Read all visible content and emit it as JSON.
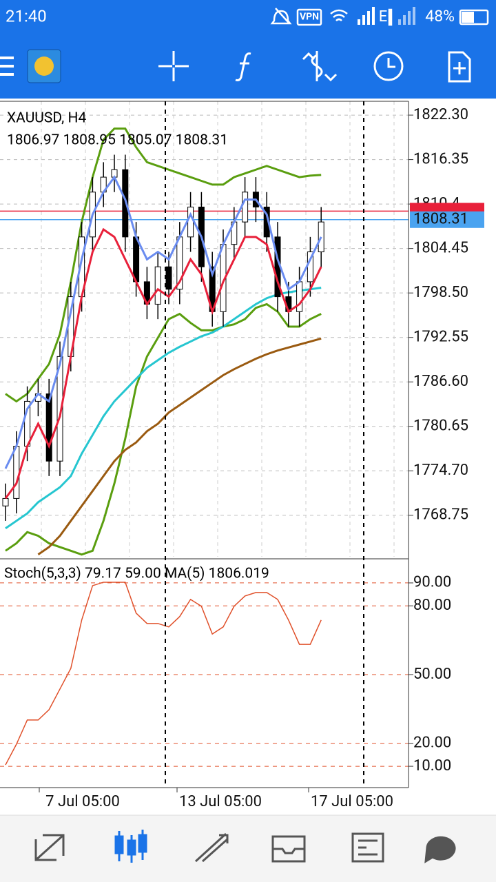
{
  "status_bar": {
    "time": "21:40",
    "vpn": "VPN",
    "network": "E",
    "battery": "48%"
  },
  "chart_data": [
    {
      "type": "candlestick",
      "title": "XAUUSD, H4",
      "subtitle": "1806.97 1808.95 1805.07 1808.31",
      "open": [
        1770,
        1771,
        1778,
        1784,
        1785,
        1776,
        1790,
        1798,
        1806,
        1812,
        1814,
        1815,
        1806,
        1800,
        1797,
        1802,
        1799,
        1806,
        1810,
        1802,
        1796,
        1805,
        1808,
        1812,
        1810,
        1806,
        1798,
        1796,
        1800,
        1804
      ],
      "high": [
        1773,
        1780,
        1786,
        1787,
        1787,
        1792,
        1800,
        1808,
        1814,
        1816,
        1817,
        1817,
        1808,
        1802,
        1804,
        1804,
        1808,
        1812,
        1812,
        1804,
        1807,
        1810,
        1814,
        1814,
        1812,
        1808,
        1800,
        1802,
        1806,
        1810
      ],
      "low": [
        1768,
        1769,
        1776,
        1782,
        1774,
        1774,
        1788,
        1796,
        1804,
        1810,
        1812,
        1804,
        1798,
        1795,
        1795,
        1797,
        1797,
        1804,
        1800,
        1794,
        1794,
        1803,
        1806,
        1808,
        1804,
        1796,
        1794,
        1794,
        1798,
        1802
      ],
      "close": [
        1771,
        1778,
        1784,
        1785,
        1776,
        1790,
        1798,
        1806,
        1812,
        1814,
        1815,
        1806,
        1800,
        1797,
        1802,
        1799,
        1806,
        1810,
        1802,
        1796,
        1805,
        1808,
        1812,
        1810,
        1806,
        1798,
        1796,
        1800,
        1804,
        1808
      ],
      "series": [
        {
          "color": "#5a9e0f",
          "values": [
            1785,
            1784,
            1785,
            1787,
            1789,
            1793,
            1800,
            1808,
            1814,
            1819,
            1820.5,
            1820.5,
            1818,
            1816,
            1815.5,
            1815,
            1814.5,
            1814,
            1813.5,
            1813,
            1813,
            1814,
            1814.5,
            1815,
            1815.5,
            1815,
            1814.5,
            1814,
            1814.2,
            1814.3
          ]
        },
        {
          "color": "#5a9e0f",
          "values": [
            1764,
            1765,
            1766.5,
            1766,
            1765,
            1764.5,
            1764,
            1763.5,
            1764,
            1768,
            1773,
            1779,
            1786,
            1790,
            1792.5,
            1795,
            1795.7,
            1794.5,
            1793.5,
            1793.5,
            1794,
            1794.3,
            1795,
            1796.5,
            1797,
            1796,
            1794,
            1794,
            1795,
            1795.7
          ]
        },
        {
          "color": "#26c6d0",
          "values": [
            1767,
            1768,
            1769,
            1770.5,
            1771.5,
            1772.5,
            1774,
            1777,
            1779.5,
            1782,
            1784,
            1785.5,
            1787,
            1788.5,
            1789.5,
            1790.5,
            1791.3,
            1792,
            1792.7,
            1793.2,
            1794,
            1795,
            1796,
            1797,
            1797.8,
            1798.3,
            1798.6,
            1798.8,
            1799,
            1799.2
          ]
        },
        {
          "color": "#9a5a10",
          "values": [
            null,
            null,
            null,
            1763.5,
            1764.5,
            1766,
            1768,
            1770,
            1772,
            1774,
            1776,
            1777.5,
            1778.5,
            1780,
            1781,
            1782.5,
            1783.5,
            1784.5,
            1785.5,
            1786.5,
            1787.5,
            1788.3,
            1789,
            1789.7,
            1790.3,
            1790.8,
            1791.2,
            1791.6,
            1792,
            1792.4
          ]
        },
        {
          "color": "#e8203a",
          "values": [
            1771,
            1773,
            1778,
            1781,
            1778,
            1782,
            1790,
            1798,
            1804,
            1807,
            1806,
            1803,
            1800,
            1797,
            1799,
            1798,
            1800,
            1803,
            1801,
            1796,
            1800,
            1803,
            1806,
            1806,
            1805,
            1800,
            1796,
            1797,
            1799,
            1802
          ]
        },
        {
          "color": "#6a8cf0",
          "values": [
            1775,
            1778,
            1783,
            1785,
            1784,
            1789,
            1796,
            1803,
            1809,
            1812,
            1814,
            1811,
            1806,
            1803,
            1804,
            1803,
            1806,
            1809,
            1806,
            1801,
            1805,
            1808,
            1811,
            1811,
            1809,
            1803,
            1799,
            1800,
            1803,
            1806
          ]
        }
      ],
      "ask": 1809.45,
      "ask_color": "#e8203a",
      "last": 1808.31,
      "last_color": "#4aa3f0",
      "ylim": [
        1763.2,
        1824.15
      ],
      "yticks": [
        {
          "value": 1822.3,
          "label": "1822.30"
        },
        1816.35,
        1810.4,
        1804.45,
        {
          "value": 1798.5,
          "label": "1798.50"
        },
        1792.55,
        {
          "value": 1786.6,
          "label": "1786.60"
        },
        1780.65,
        {
          "value": 1774.7,
          "label": "1774.70"
        },
        1768.75
      ],
      "grid": true
    },
    {
      "type": "line",
      "title": "Stoch(5,3,3) 79.17 59.00 MA(5) 1806.019",
      "series": [
        {
          "color": "#e0502a",
          "values": [
            10.6,
            19.6,
            30.2,
            30.2,
            34.7,
            43.7,
            52.7,
            73.8,
            88.8,
            90.3,
            90.3,
            90.3,
            76.8,
            72.3,
            72.3,
            70.8,
            75.3,
            82.8,
            79.8,
            67.7,
            70.8,
            79.8,
            84.3,
            85.8,
            85.8,
            82.8,
            73.8,
            63.2,
            63.2,
            73.8
          ]
        }
      ],
      "ylim": [
        0.7,
        99.3
      ],
      "yticks": [
        {
          "value": 90,
          "label": "90.00"
        },
        {
          "value": 80,
          "label": "80.00"
        },
        {
          "value": 50,
          "label": "50.00"
        },
        {
          "value": 20,
          "label": "20.00"
        },
        {
          "value": 10,
          "label": "10.00"
        }
      ],
      "level_color": "#e0502a"
    }
  ],
  "x_labels": [
    "7 Jul 05:00",
    "13 Jul 05:00",
    "17 Jul 05:00"
  ]
}
